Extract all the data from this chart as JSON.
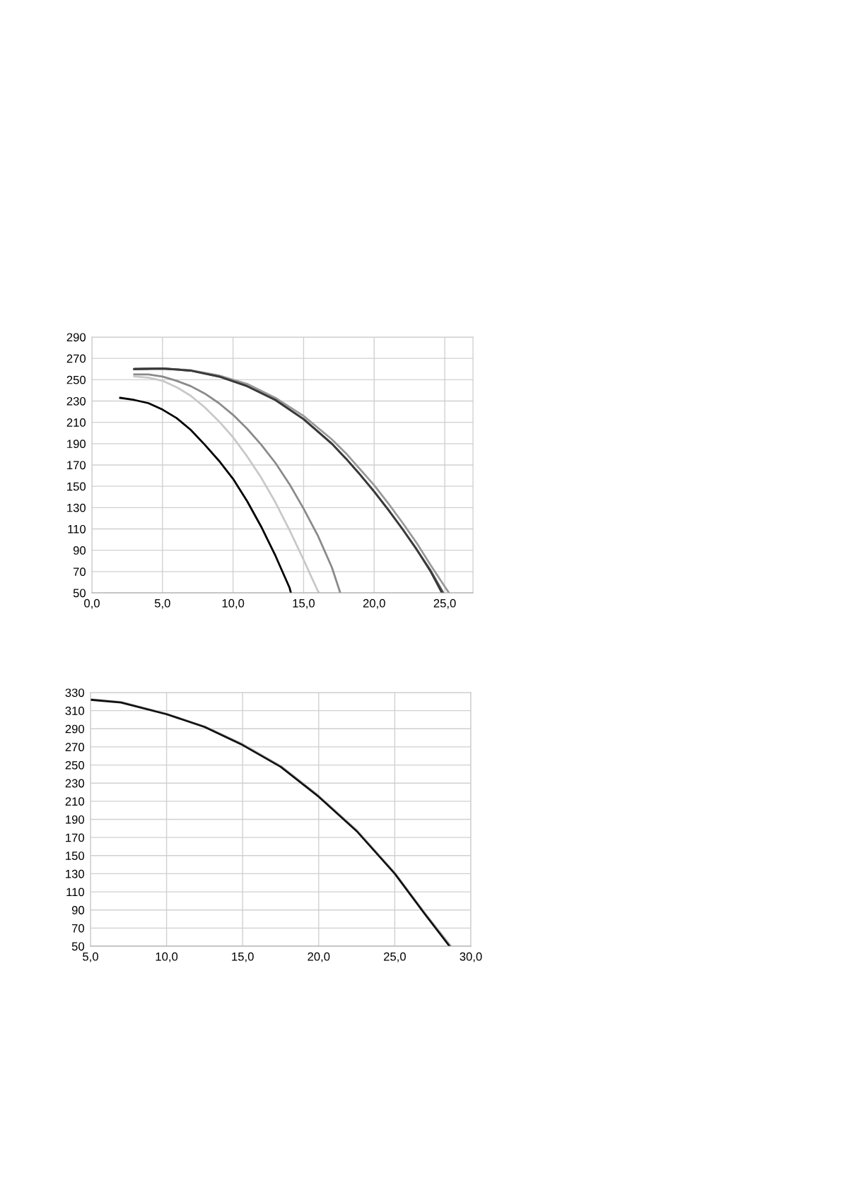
{
  "chart_data": [
    {
      "type": "line",
      "xlim": [
        0,
        27
      ],
      "ylim": [
        50,
        290
      ],
      "xticks": [
        {
          "value": 0,
          "label": "0,0"
        },
        {
          "value": 5,
          "label": "5,0"
        },
        {
          "value": 10,
          "label": "10,0"
        },
        {
          "value": 15,
          "label": "15,0"
        },
        {
          "value": 20,
          "label": "20,0"
        },
        {
          "value": 25,
          "label": "25,0"
        }
      ],
      "yticks": [
        50,
        70,
        90,
        110,
        130,
        150,
        170,
        190,
        210,
        230,
        250,
        270,
        290
      ],
      "grid": true,
      "line_style": "solid",
      "series": [
        {
          "color": "#999999",
          "x": [
            3,
            5,
            7,
            9,
            11,
            13,
            15,
            17,
            18,
            19,
            20,
            21,
            22,
            23,
            24,
            25,
            25.3
          ],
          "values": [
            260,
            260.5,
            259,
            254,
            246,
            233,
            216,
            194,
            181,
            166,
            151,
            134,
            116,
            97,
            76,
            56,
            50
          ]
        },
        {
          "color": "#555555",
          "x": [
            3,
            5,
            7,
            9,
            11,
            13,
            15,
            17,
            18,
            19,
            20,
            21,
            22,
            23,
            24,
            24.9
          ],
          "values": [
            260,
            260.5,
            258.5,
            253,
            244,
            231,
            213,
            190,
            176,
            161,
            145,
            128,
            110,
            91,
            71,
            50
          ]
        },
        {
          "color": "#3a3a3a",
          "x": [
            3,
            5,
            7,
            9,
            11,
            13,
            15,
            17,
            18,
            19,
            20,
            21,
            22,
            23,
            24,
            24.8
          ],
          "values": [
            260,
            260.5,
            258.5,
            253,
            244,
            231,
            213,
            190,
            176,
            161,
            145,
            128,
            110,
            91,
            70,
            50
          ]
        },
        {
          "color": "#8a8a8a",
          "x": [
            3,
            4,
            5,
            6,
            7,
            8,
            9,
            10,
            11,
            12,
            13,
            14,
            15,
            16,
            17,
            17.6
          ],
          "values": [
            255,
            255,
            253,
            249,
            244,
            237,
            228,
            217,
            204,
            189,
            172,
            152,
            129,
            104,
            74,
            50
          ]
        },
        {
          "color": "#c8c8c8",
          "x": [
            3,
            4,
            5,
            6,
            7,
            8,
            9,
            10,
            11,
            12,
            13,
            14,
            15,
            16,
            16.1
          ],
          "values": [
            253,
            252,
            249,
            243,
            235,
            224,
            211,
            196,
            178,
            158,
            135,
            109,
            81,
            52,
            50
          ]
        },
        {
          "color": "#000000",
          "x": [
            2,
            3,
            4,
            5,
            6,
            7,
            8,
            9,
            10,
            11,
            12,
            13,
            14,
            14.1
          ],
          "values": [
            233,
            231,
            228,
            222,
            214,
            203,
            189,
            174,
            157,
            136,
            112,
            85,
            55,
            50
          ]
        }
      ]
    },
    {
      "type": "line",
      "xlim": [
        5,
        30
      ],
      "ylim": [
        50,
        330
      ],
      "xticks": [
        {
          "value": 5,
          "label": "5,0"
        },
        {
          "value": 10,
          "label": "10,0"
        },
        {
          "value": 15,
          "label": "15,0"
        },
        {
          "value": 20,
          "label": "20,0"
        },
        {
          "value": 25,
          "label": "25,0"
        },
        {
          "value": 30,
          "label": "30,0"
        }
      ],
      "yticks": [
        50,
        70,
        90,
        110,
        130,
        150,
        170,
        190,
        210,
        230,
        250,
        270,
        290,
        310,
        330
      ],
      "grid": true,
      "line_style": "solid",
      "series": [
        {
          "color": "#bbbbbb",
          "x": [
            5,
            7,
            10,
            12.5,
            15,
            17.5,
            20,
            22.5,
            25,
            27,
            28.7
          ],
          "values": [
            322.5,
            319.5,
            306.5,
            292.5,
            273,
            249,
            216,
            178,
            131,
            86,
            50
          ]
        },
        {
          "color": "#111111",
          "x": [
            5,
            7,
            10,
            12.5,
            15,
            17.5,
            20,
            22.5,
            25,
            27,
            28.6
          ],
          "values": [
            322,
            319,
            306,
            292,
            272,
            248,
            215,
            177,
            130,
            85,
            50
          ]
        }
      ]
    }
  ]
}
